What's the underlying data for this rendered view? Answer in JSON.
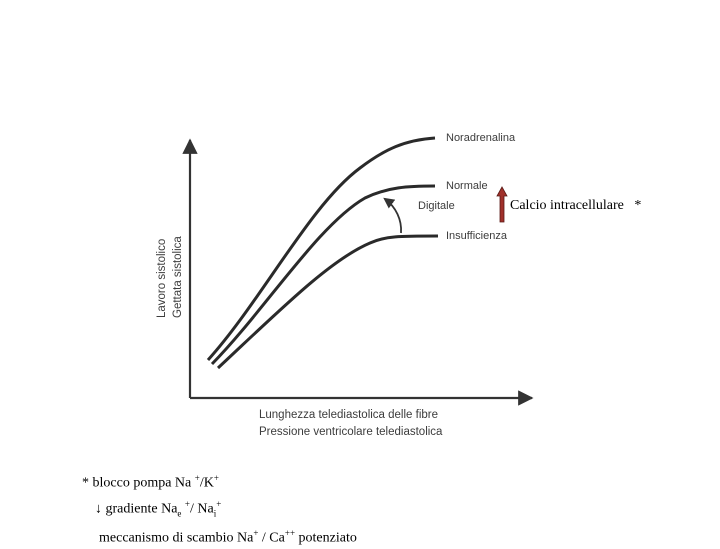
{
  "figure": {
    "curves": [
      {
        "label": "Noradrenalina"
      },
      {
        "label": "Normale"
      },
      {
        "label": "Digitale"
      },
      {
        "label": "Insufficienza"
      }
    ],
    "y_axis_labels": [
      "Lavoro sistolico",
      "Gettata sistolica"
    ],
    "x_axis_labels": [
      "Lunghezza telediastolica delle fibre",
      "Pressione ventricolare telediastolica"
    ]
  },
  "annotation": {
    "calcio_label": "Calcio intracellulare",
    "calcio_asterisk": "*",
    "arrow_color": "#8b0000"
  },
  "notes": {
    "line1_prefix": "* blocco pompa Na",
    "line1_sup1": "+",
    "line1_mid": "/K",
    "line1_sup2": "+",
    "line2_arrow": "↓",
    "line2_text": "gradiente Na",
    "line2_sub_e": "e",
    "line2_sup1": "+",
    "line2_mid": "/ Na",
    "line2_sub_i": "i",
    "line2_sup2": "+",
    "line3_text": "meccanismo di scambio Na",
    "line3_sup1": "+",
    "line3_mid": " / Ca",
    "line3_sup2": "++",
    "line3_end": " potenziato"
  }
}
